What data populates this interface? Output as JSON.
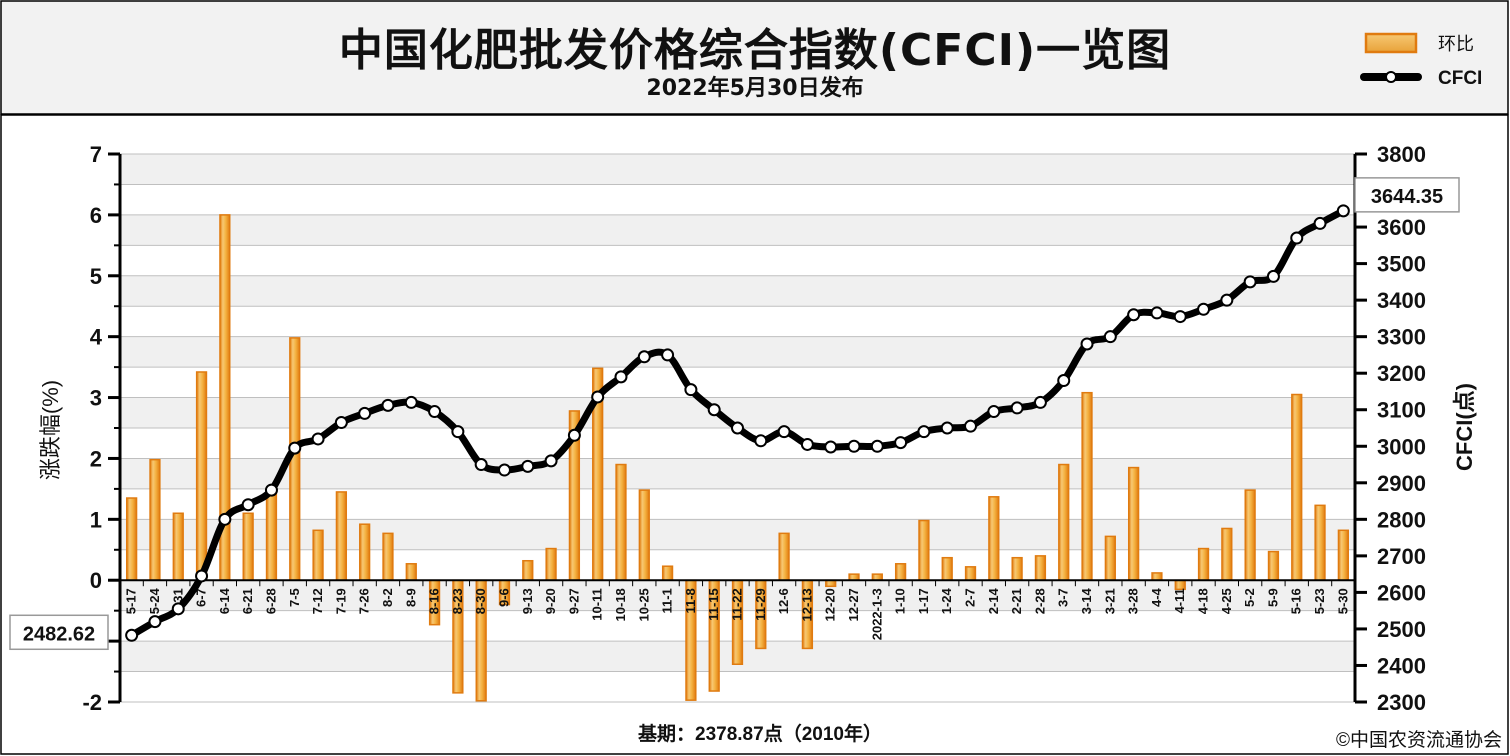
{
  "header": {
    "title": "中国化肥批发价格综合指数(CFCI)一览图",
    "subtitle": "2022年5月30日发布"
  },
  "legend": {
    "bar_label": "环比",
    "line_label": "CFCI"
  },
  "footer": {
    "base_note": "基期：2378.87点（2010年）",
    "copyright": "©中国农资流通协会"
  },
  "colors": {
    "bar_fill": "#F2B84B",
    "bar_edge": "#E07B10",
    "line": "#000000",
    "marker_fill": "#ffffff",
    "plot_band_light": "#F0F0F0",
    "header_bg": "#F2F2F2"
  },
  "chart_data": {
    "type": "bar+line",
    "title": "中国化肥批发价格综合指数(CFCI)一览图",
    "subtitle": "2022年5月30日发布",
    "ylabel_left": "涨跌幅(%)",
    "ylabel_right": "CFCI(点)",
    "ylim_left": [
      -2,
      7
    ],
    "ylim_right": [
      2300,
      3800
    ],
    "yticks_left": [
      -2,
      -1,
      0,
      1,
      2,
      3,
      4,
      5,
      6,
      7
    ],
    "yticks_right": [
      2300,
      2400,
      2500,
      2600,
      2700,
      2800,
      2900,
      3000,
      3100,
      3200,
      3300,
      3400,
      3500,
      3600,
      3700,
      3800
    ],
    "grid": true,
    "legend_position": "top-right",
    "categories": [
      "5-17",
      "5-24",
      "5-31",
      "6-7",
      "6-14",
      "6-21",
      "6-28",
      "7-5",
      "7-12",
      "7-19",
      "7-26",
      "8-2",
      "8-9",
      "8-16",
      "8-23",
      "8-30",
      "9-6",
      "9-13",
      "9-20",
      "9-27",
      "10-11",
      "10-18",
      "10-25",
      "11-1",
      "11-8",
      "11-15",
      "11-22",
      "11-29",
      "12-6",
      "12-13",
      "12-20",
      "12-27",
      "2022-1-3",
      "1-10",
      "1-17",
      "1-24",
      "2-7",
      "2-14",
      "2-21",
      "2-28",
      "3-7",
      "3-14",
      "3-21",
      "3-28",
      "4-4",
      "4-11",
      "4-18",
      "4-25",
      "5-2",
      "5-9",
      "5-16",
      "5-23",
      "5-30"
    ],
    "series": [
      {
        "name": "环比",
        "type": "bar",
        "values": [
          1.35,
          1.98,
          1.1,
          3.42,
          6.0,
          1.1,
          1.45,
          3.98,
          0.82,
          1.45,
          0.92,
          0.77,
          0.27,
          -0.73,
          -1.85,
          -1.98,
          -0.4,
          0.32,
          0.52,
          2.78,
          3.48,
          1.9,
          1.48,
          0.23,
          -1.97,
          -1.82,
          -1.38,
          -1.12,
          0.77,
          -1.12,
          -0.1,
          0.1,
          0.1,
          0.27,
          0.98,
          0.37,
          0.22,
          1.37,
          0.37,
          0.4,
          1.9,
          3.08,
          0.72,
          1.85,
          0.12,
          -0.15,
          0.52,
          0.85,
          1.48,
          0.47,
          3.05,
          1.23,
          0.82
        ]
      },
      {
        "name": "CFCI",
        "type": "line",
        "values": [
          2482.62,
          2520,
          2555,
          2645,
          2800,
          2840,
          2880,
          2995,
          3020,
          3065,
          3090,
          3112,
          3120,
          3095,
          3040,
          2950,
          2935,
          2945,
          2960,
          3030,
          3135,
          3190,
          3245,
          3250,
          3155,
          3100,
          3050,
          3015,
          3040,
          3005,
          2998,
          3000,
          3000,
          3010,
          3040,
          3050,
          3055,
          3095,
          3105,
          3120,
          3180,
          3280,
          3300,
          3360,
          3365,
          3355,
          3375,
          3400,
          3450,
          3465,
          3570,
          3610,
          3644.35
        ]
      }
    ],
    "annotations": [
      "2482.62",
      "3644.35"
    ]
  }
}
